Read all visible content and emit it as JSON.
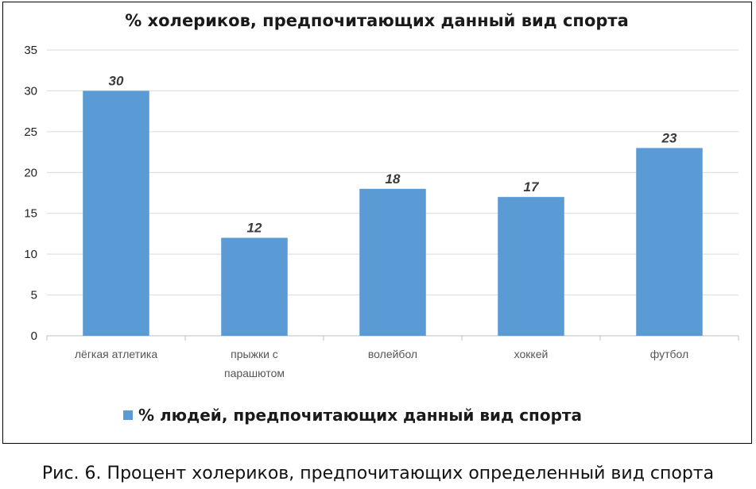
{
  "chart_data": {
    "type": "bar",
    "title": "% холериков, предпочитающих данный вид спорта",
    "categories": [
      [
        "лёгкая атлетика"
      ],
      [
        "прыжки с",
        "парашютом"
      ],
      [
        "волейбол"
      ],
      [
        "хоккей"
      ],
      [
        "футбол"
      ]
    ],
    "series": [
      {
        "name": "% людей, предпочитающих данный вид спорта",
        "values": [
          30,
          12,
          18,
          17,
          23
        ],
        "color": "#5B9BD5"
      }
    ],
    "ylim": [
      0,
      35
    ],
    "yticks": [
      0,
      5,
      10,
      15,
      20,
      25,
      30,
      35
    ],
    "grid": true,
    "legend_position": "bottom",
    "data_labels": true
  },
  "caption": "Рис. 6. Процент холериков, предпочитающих определенный вид спорта"
}
